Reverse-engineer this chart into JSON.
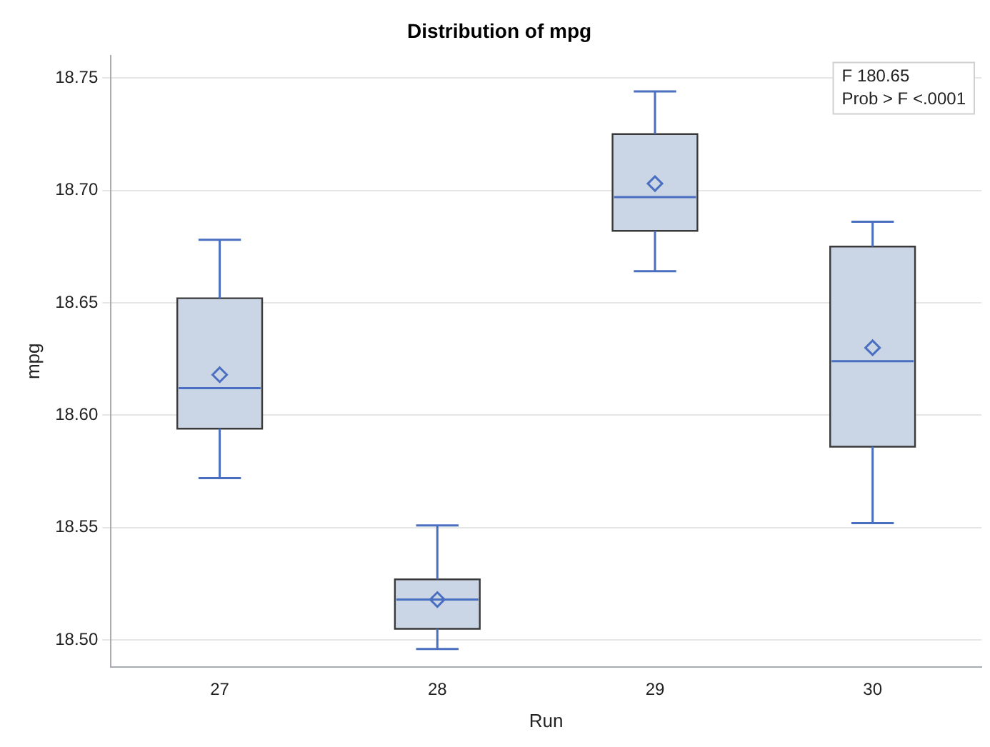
{
  "chart_data": {
    "type": "box",
    "title": "Distribution of mpg",
    "xlabel": "Run",
    "ylabel": "mpg",
    "categories": [
      "27",
      "28",
      "29",
      "30"
    ],
    "series": [
      {
        "color": "#cad5e5",
        "boxes": [
          {
            "low": 18.572,
            "q1": 18.594,
            "median": 18.612,
            "q3": 18.652,
            "high": 18.678,
            "mean": 18.618
          },
          {
            "low": 18.496,
            "q1": 18.505,
            "median": 18.518,
            "q3": 18.527,
            "high": 18.551,
            "mean": 18.518
          },
          {
            "low": 18.664,
            "q1": 18.682,
            "median": 18.697,
            "q3": 18.725,
            "high": 18.744,
            "mean": 18.703
          },
          {
            "low": 18.552,
            "q1": 18.586,
            "median": 18.624,
            "q3": 18.675,
            "high": 18.686,
            "mean": 18.63
          }
        ]
      }
    ],
    "ylim": [
      18.488,
      18.76
    ],
    "yticks": [
      {
        "value": 18.5,
        "label": "18.50"
      },
      18.55,
      {
        "value": 18.6,
        "label": "18.60"
      },
      18.65,
      {
        "value": 18.7,
        "label": "18.70"
      },
      18.75
    ],
    "grid": "y",
    "legend": false,
    "marker": "diamond",
    "annotations": [
      "F 180.65",
      "Prob > F <.0001"
    ]
  }
}
